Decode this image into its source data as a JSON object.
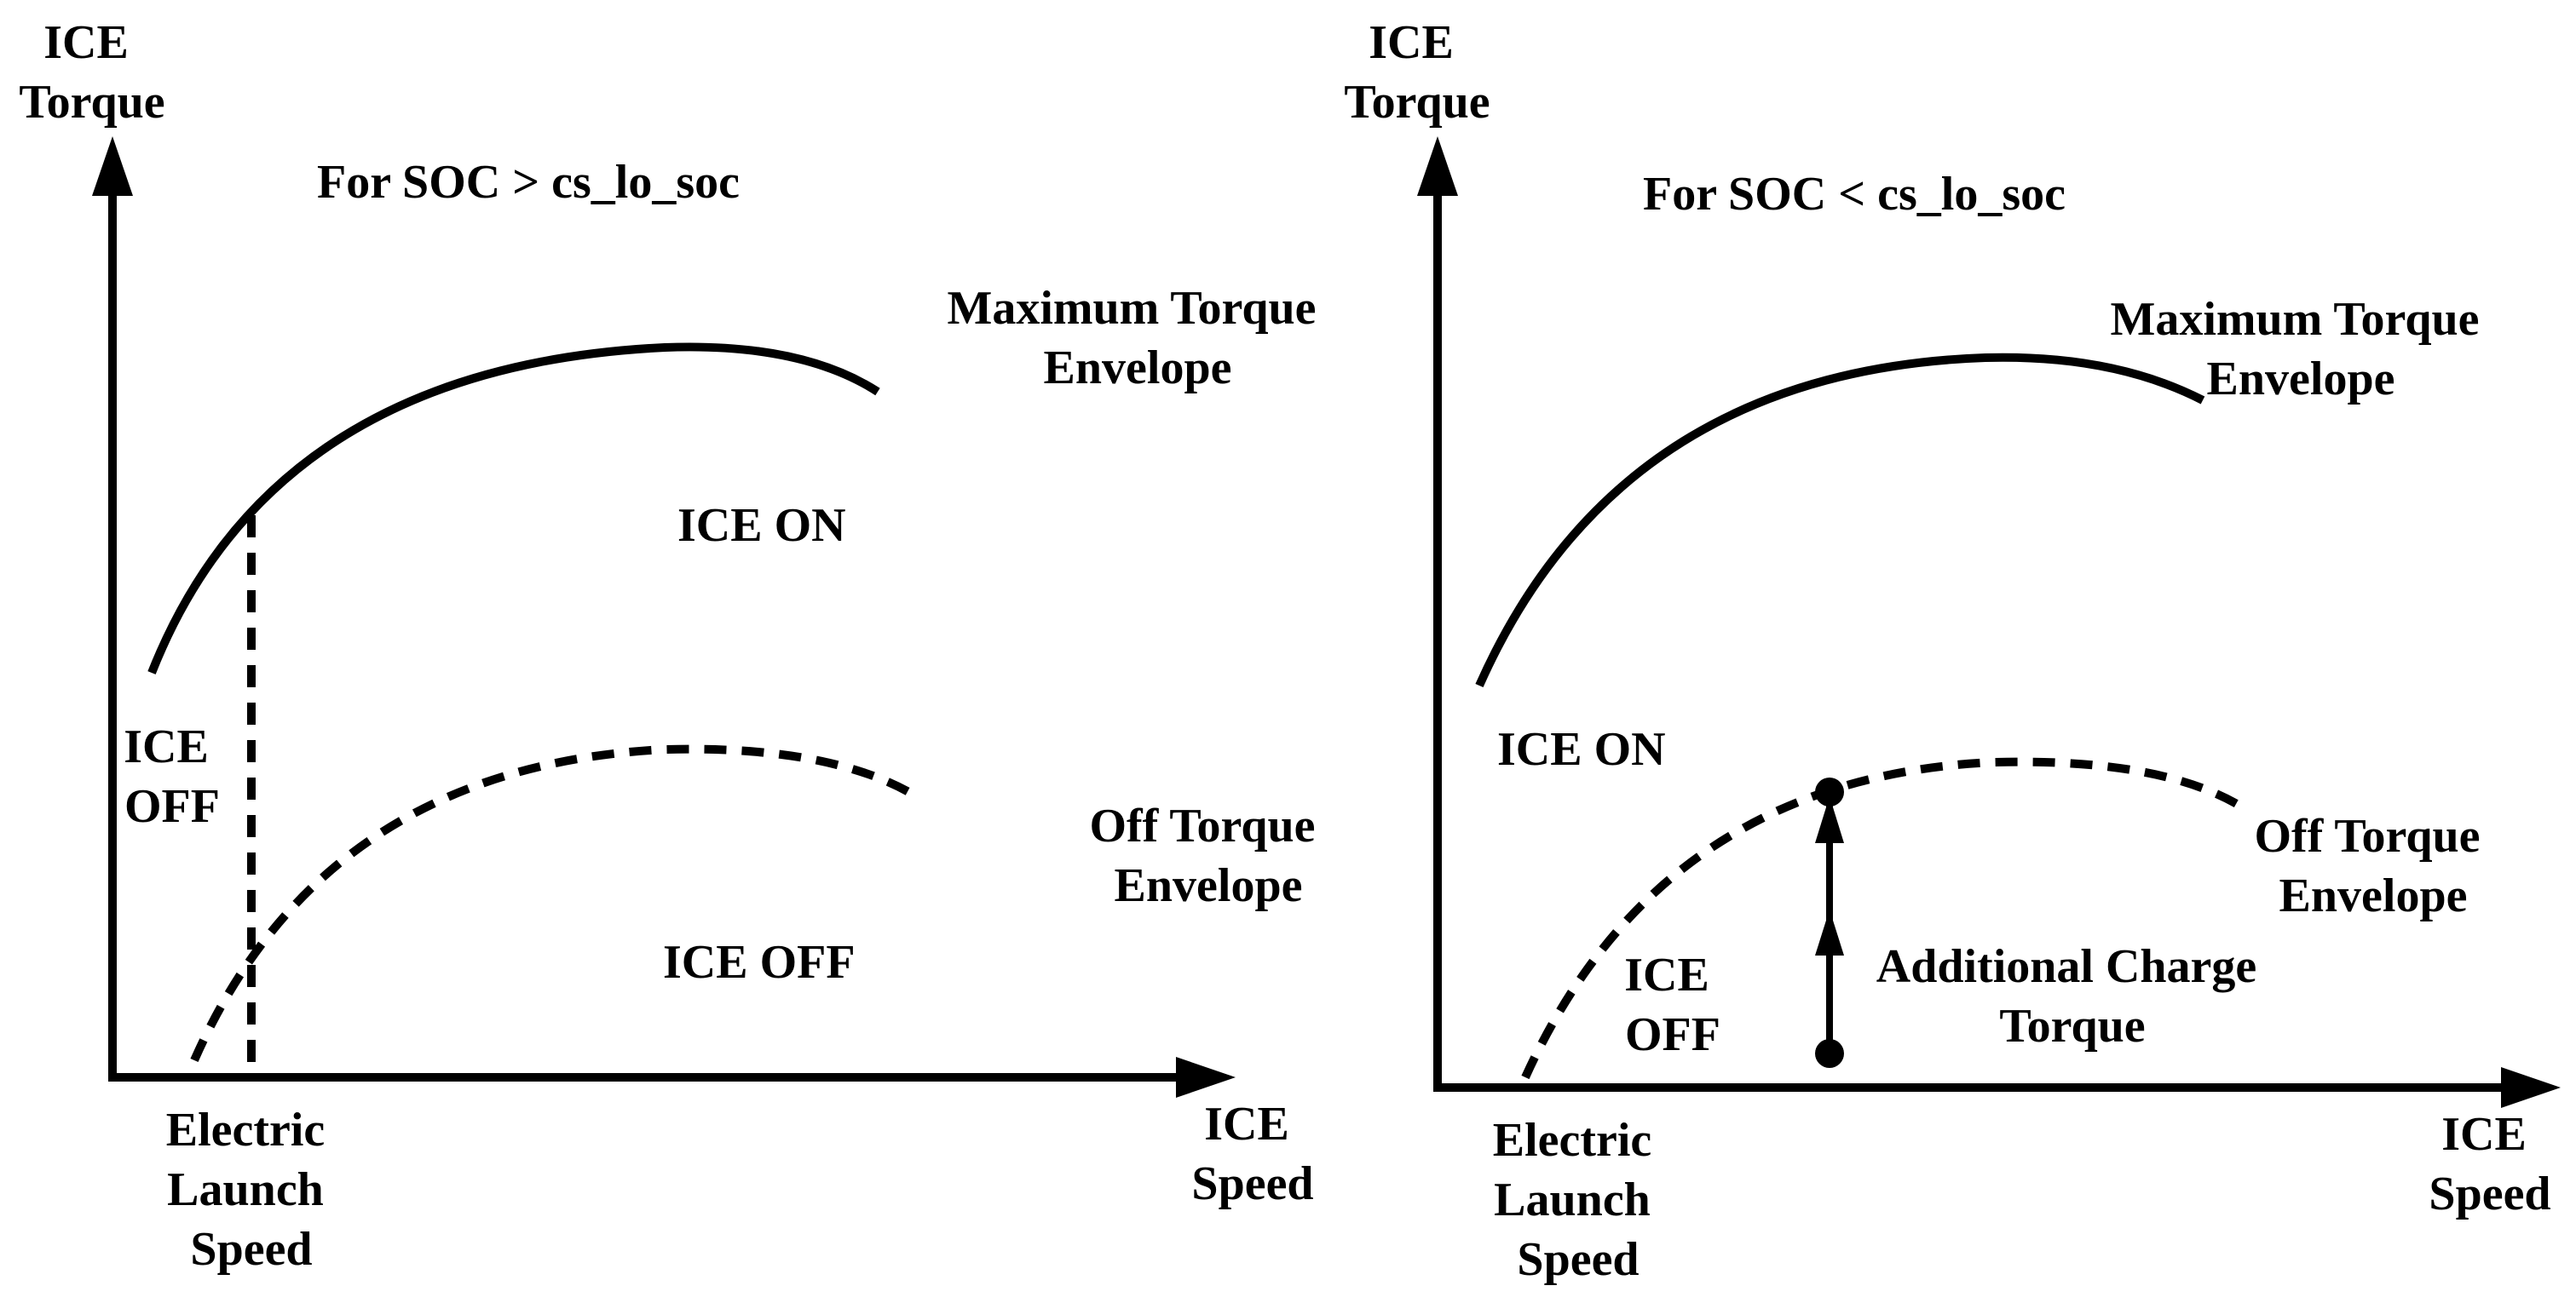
{
  "left_panel": {
    "y_axis_label": [
      "ICE",
      "Torque"
    ],
    "x_axis_label": [
      "ICE",
      "Speed"
    ],
    "condition": "For SOC > cs_lo_soc",
    "max_torque_label": [
      "Maximum Torque",
      "Envelope"
    ],
    "off_torque_label": [
      "Off Torque",
      "Envelope"
    ],
    "ice_on": "ICE ON",
    "ice_off_region": "ICE OFF",
    "ice_off_side": [
      "ICE",
      "OFF"
    ],
    "launch_label": [
      "Electric",
      "Launch",
      "Speed"
    ]
  },
  "right_panel": {
    "y_axis_label": [
      "ICE",
      "Torque"
    ],
    "x_axis_label": [
      "ICE",
      "Speed"
    ],
    "condition": "For SOC < cs_lo_soc",
    "max_torque_label": [
      "Maximum Torque",
      "Envelope"
    ],
    "off_torque_label": [
      "Off Torque",
      "Envelope"
    ],
    "ice_on": "ICE ON",
    "ice_off": [
      "ICE",
      "OFF"
    ],
    "charge_label": [
      "Additional Charge",
      "Torque"
    ],
    "launch_label": [
      "Electric",
      "Launch",
      "Speed"
    ]
  }
}
